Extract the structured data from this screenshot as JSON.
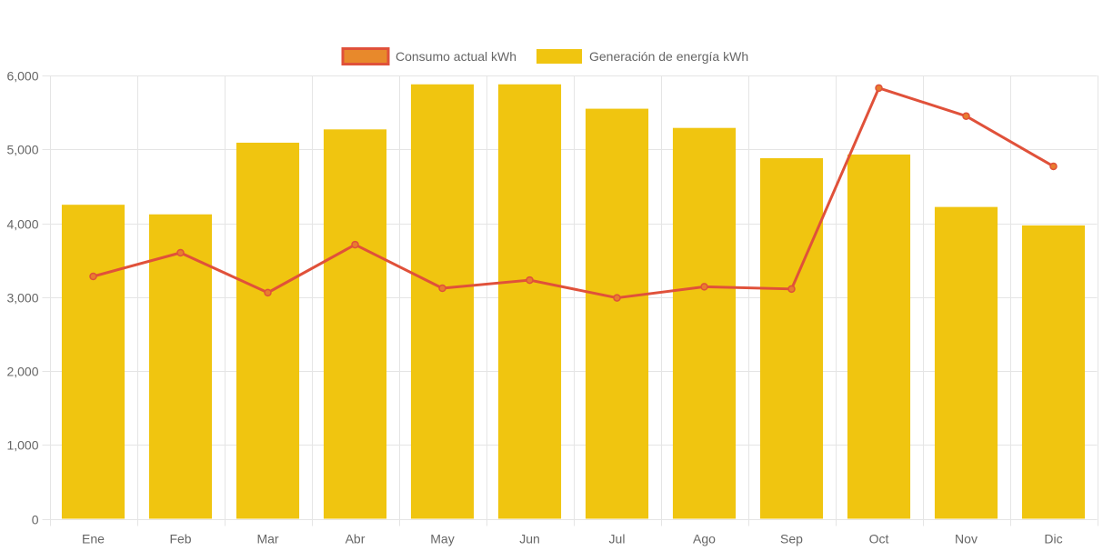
{
  "chart_data": {
    "type": "bar",
    "title": "",
    "xlabel": "",
    "ylabel": "",
    "categories": [
      "Ene",
      "Feb",
      "Mar",
      "Abr",
      "May",
      "Jun",
      "Jul",
      "Ago",
      "Sep",
      "Oct",
      "Nov",
      "Dic"
    ],
    "ylim": [
      0,
      6000
    ],
    "yticks": [
      0,
      1000,
      2000,
      3000,
      4000,
      5000,
      6000
    ],
    "ytick_labels": [
      "0",
      "1,000",
      "2,000",
      "3,000",
      "4,000",
      "5,000",
      "6,000"
    ],
    "grid": true,
    "legend_position": "top-center",
    "series": [
      {
        "name": "Consumo actual kWh",
        "type": "line",
        "color": "#e0513a",
        "point_color": "#e87d2e",
        "values": [
          3280,
          3600,
          3060,
          3710,
          3120,
          3230,
          2990,
          3140,
          3110,
          5830,
          5450,
          4770
        ]
      },
      {
        "name": "Generación de energía kWh",
        "type": "bar",
        "color": "#f0c510",
        "values": [
          4250,
          4120,
          5090,
          5270,
          5880,
          5880,
          5550,
          5290,
          4880,
          4930,
          4220,
          3970
        ]
      }
    ]
  },
  "colors": {
    "grid": "#e5e5e5",
    "axis_text": "#666666",
    "legend_line_fill": "#e8892b",
    "legend_line_border": "#e0513a"
  }
}
